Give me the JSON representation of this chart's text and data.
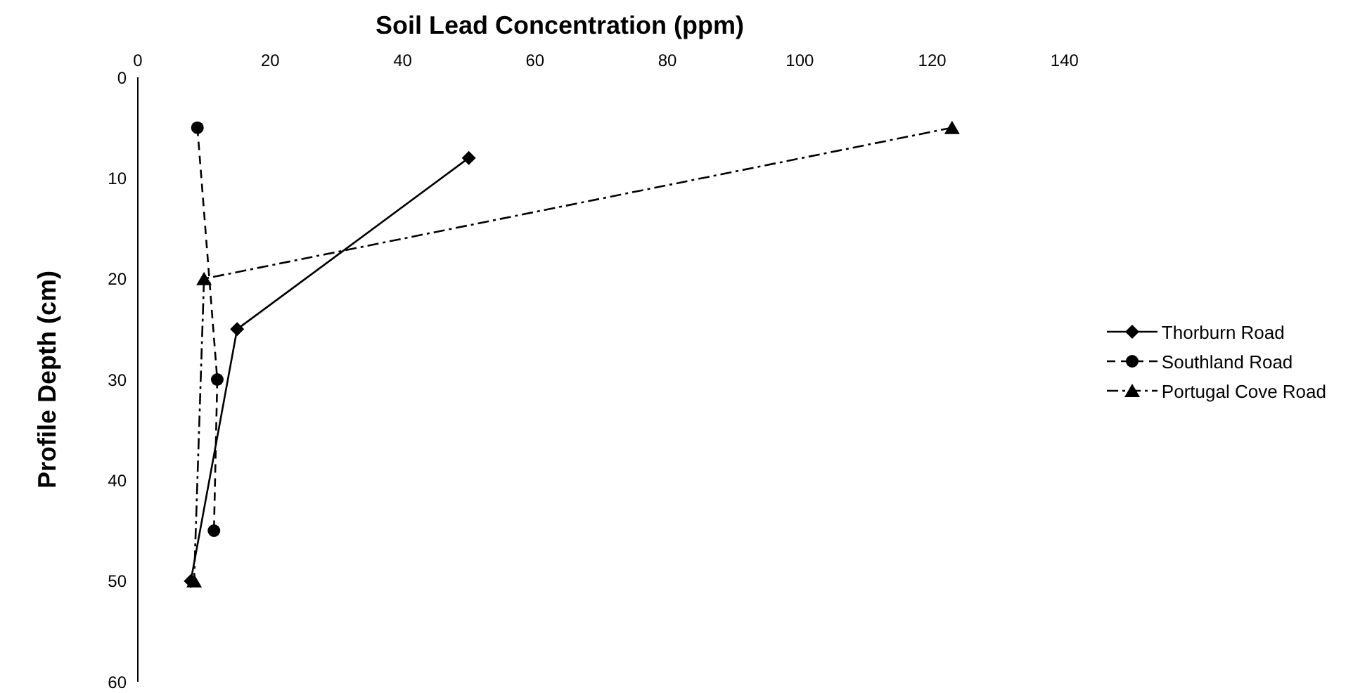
{
  "chart_data": {
    "type": "line",
    "xlabel": "Soil Lead Concentration (ppm)",
    "ylabel": "Profile Depth (cm)",
    "xlim": [
      0,
      140
    ],
    "xticks": [
      0,
      20,
      40,
      60,
      80,
      100,
      120,
      140
    ],
    "ylim": [
      60,
      0
    ],
    "yticks": [
      0,
      10,
      20,
      30,
      40,
      50,
      60
    ],
    "grid": false,
    "legend": "right",
    "series": [
      {
        "name": "Thorburn Road",
        "color": "#000000",
        "marker": "diamond",
        "line_style": "solid",
        "x": [
          50,
          15,
          8
        ],
        "values": [
          8,
          25,
          50
        ]
      },
      {
        "name": "Southland Road",
        "color": "#000000",
        "marker": "circle",
        "line_style": "dashed",
        "x": [
          9,
          12,
          11.5
        ],
        "values": [
          5,
          30,
          45
        ]
      },
      {
        "name": "Portugal Cove Road",
        "color": "#000000",
        "marker": "triangle",
        "line_style": "dashdot",
        "x": [
          123,
          10,
          8.5
        ],
        "values": [
          5,
          20,
          50
        ]
      }
    ]
  }
}
